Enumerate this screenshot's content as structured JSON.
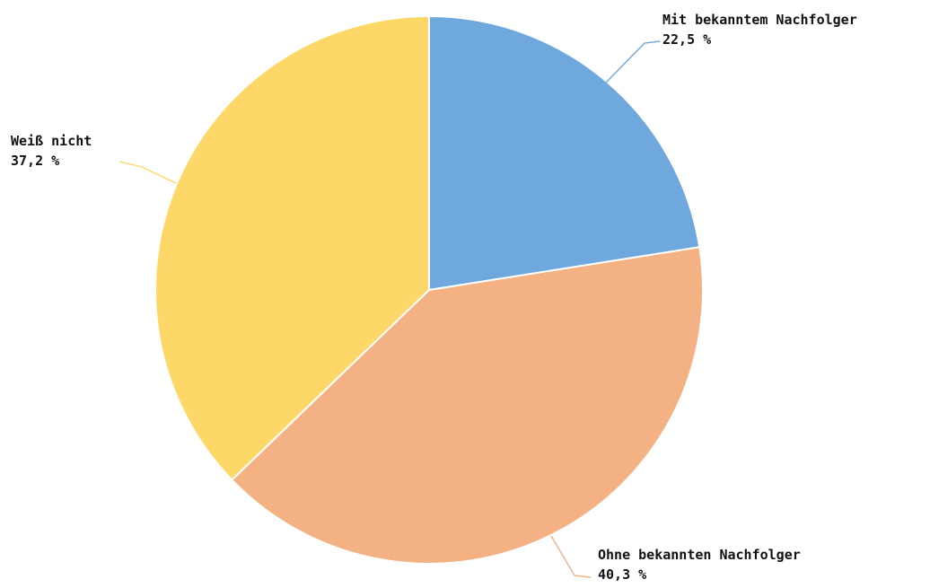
{
  "chart_data": {
    "type": "pie",
    "start_angle_deg": 0,
    "direction": "clockwise",
    "slices": [
      {
        "label": "Mit bekanntem Nachfolger",
        "value": 22.5,
        "value_label": "22,5 %",
        "color": "#6fa8dc"
      },
      {
        "label": "Ohne bekannten Nachfolger",
        "value": 40.3,
        "value_label": "40,3 %",
        "color": "#f4b183"
      },
      {
        "label": "Weiß nicht",
        "value": 37.2,
        "value_label": "37,2 %",
        "color": "#fdd768"
      }
    ]
  }
}
